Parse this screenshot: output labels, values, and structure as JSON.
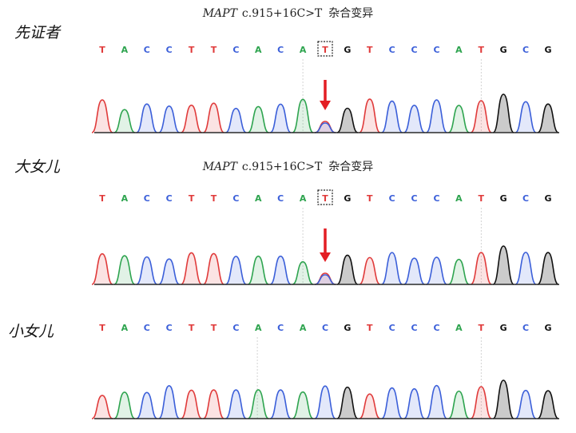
{
  "sequence_colors": {
    "A": "#2ea44f",
    "C": "#3b5fd9",
    "G": "#111111",
    "T": "#e03b3b"
  },
  "arrow_color": "#e31e24",
  "panels": [
    {
      "label": "先证者",
      "title": {
        "gene": "MAPT",
        "variant": "c.915+16C>T",
        "type": "杂合变异"
      },
      "bases": [
        "T",
        "A",
        "C",
        "C",
        "T",
        "T",
        "C",
        "A",
        "C",
        "A",
        "T",
        "G",
        "T",
        "C",
        "C",
        "C",
        "A",
        "T",
        "G",
        "C",
        "G"
      ],
      "boxed_index": 10,
      "arrow": true,
      "heterozygous_index": 10
    },
    {
      "label": "大女儿",
      "title": {
        "gene": "MAPT",
        "variant": "c.915+16C>T",
        "type": "杂合变异"
      },
      "bases": [
        "T",
        "A",
        "C",
        "C",
        "T",
        "T",
        "C",
        "A",
        "C",
        "A",
        "T",
        "G",
        "T",
        "C",
        "C",
        "C",
        "A",
        "T",
        "G",
        "C",
        "G"
      ],
      "boxed_index": 10,
      "arrow": true,
      "heterozygous_index": 10
    },
    {
      "label": "小女儿",
      "title": null,
      "bases": [
        "T",
        "A",
        "C",
        "C",
        "T",
        "T",
        "C",
        "A",
        "C",
        "A",
        "C",
        "G",
        "T",
        "C",
        "C",
        "C",
        "A",
        "T",
        "G",
        "C",
        "G"
      ],
      "boxed_index": null,
      "arrow": false,
      "heterozygous_index": null
    }
  ]
}
